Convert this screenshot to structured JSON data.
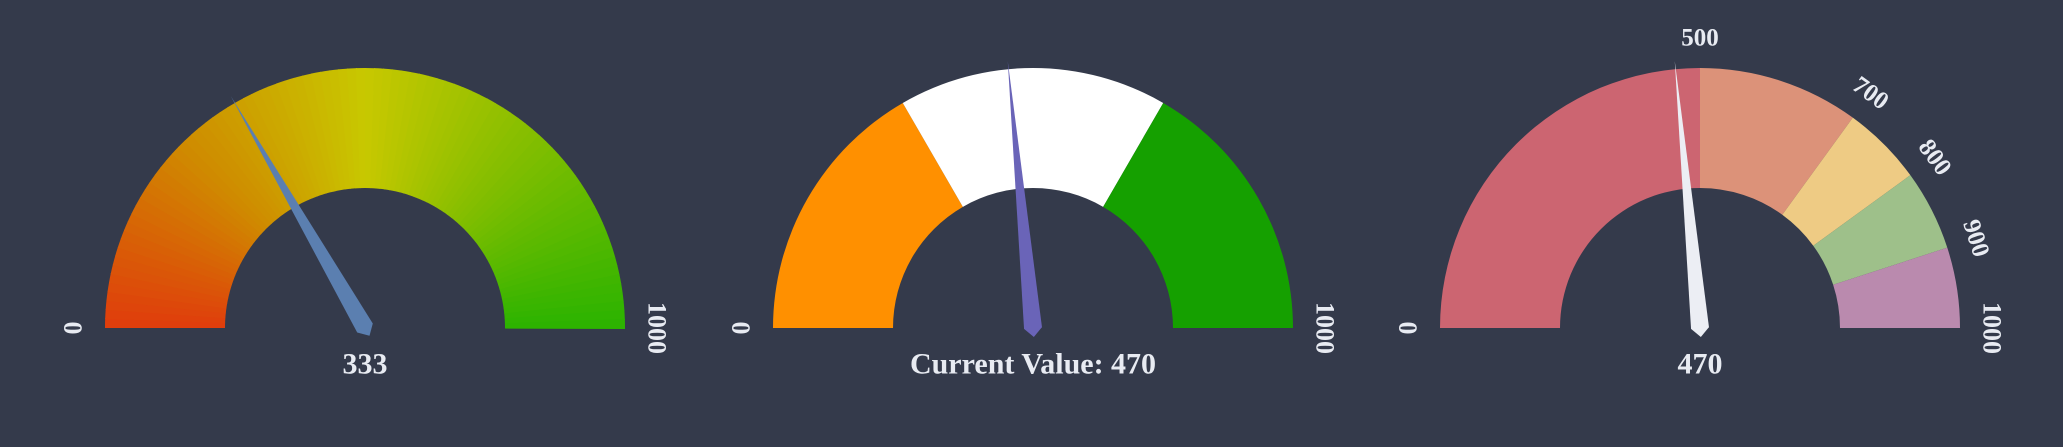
{
  "background": "#343a4b",
  "chart_data": [
    {
      "type": "gauge",
      "style": "gradient",
      "min": 0,
      "max": 1000,
      "value": 333,
      "value_text": "333",
      "tick_labels": [
        "0",
        "1000"
      ],
      "needle_color": "#5b7fb0",
      "gradient_stops": [
        "#e03c0c",
        "#cf8a00",
        "#c8c800",
        "#7dbd00",
        "#2bb300"
      ]
    },
    {
      "type": "gauge",
      "style": "segments",
      "min": 0,
      "max": 1000,
      "value": 470,
      "value_text": "Current Value: 470",
      "tick_labels": [
        "0",
        "1000"
      ],
      "needle_color": "#6a64b8",
      "segments": [
        {
          "from": 0,
          "to": 333,
          "color": "#ff9000"
        },
        {
          "from": 333,
          "to": 667,
          "color": "#ffffff"
        },
        {
          "from": 667,
          "to": 1000,
          "color": "#15a000"
        }
      ]
    },
    {
      "type": "gauge",
      "style": "segments",
      "min": 0,
      "max": 1000,
      "value": 470,
      "value_text": "470",
      "tick_labels": [
        "0",
        "500",
        "700",
        "800",
        "900",
        "1000"
      ],
      "needle_color": "#eceef4",
      "segments": [
        {
          "from": 0,
          "to": 500,
          "color": "#cc6571"
        },
        {
          "from": 500,
          "to": 700,
          "color": "#dc9279"
        },
        {
          "from": 700,
          "to": 800,
          "color": "#eecb84"
        },
        {
          "from": 800,
          "to": 900,
          "color": "#9ec08a"
        },
        {
          "from": 900,
          "to": 1000,
          "color": "#ba8aae"
        }
      ]
    }
  ]
}
